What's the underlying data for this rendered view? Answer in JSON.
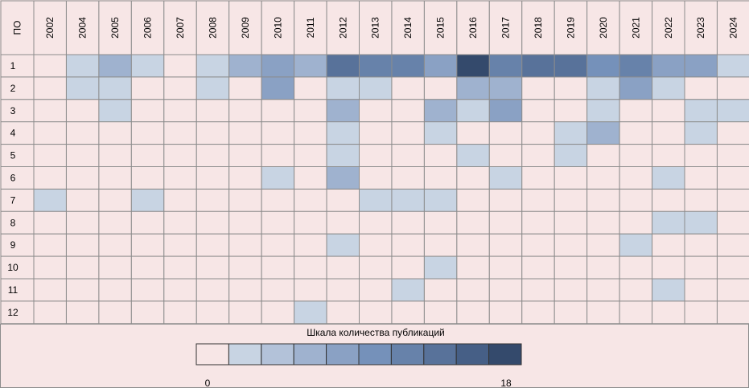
{
  "chart_data": {
    "type": "heatmap",
    "corner_label": "ПО",
    "x": [
      "2002",
      "2004",
      "2005",
      "2006",
      "2007",
      "2008",
      "2009",
      "2010",
      "2011",
      "2012",
      "2013",
      "2014",
      "2015",
      "2016",
      "2017",
      "2018",
      "2019",
      "2020",
      "2021",
      "2022",
      "2023",
      "2024"
    ],
    "y": [
      "1",
      "2",
      "3",
      "4",
      "5",
      "6",
      "7",
      "8",
      "9",
      "10",
      "11",
      "12"
    ],
    "values": [
      [
        0,
        2,
        6,
        2,
        0,
        2,
        6,
        7,
        6,
        14,
        12,
        12,
        8,
        18,
        12,
        14,
        14,
        10,
        12,
        8,
        8,
        2
      ],
      [
        0,
        2,
        2,
        0,
        0,
        2,
        0,
        8,
        0,
        2,
        2,
        0,
        0,
        6,
        6,
        0,
        0,
        2,
        8,
        2,
        0,
        0
      ],
      [
        0,
        0,
        2,
        0,
        0,
        0,
        0,
        0,
        0,
        6,
        0,
        0,
        6,
        2,
        8,
        0,
        0,
        2,
        0,
        0,
        2,
        2
      ],
      [
        0,
        0,
        0,
        0,
        0,
        0,
        0,
        0,
        0,
        2,
        0,
        0,
        2,
        0,
        0,
        0,
        2,
        6,
        0,
        0,
        2,
        0
      ],
      [
        0,
        0,
        0,
        0,
        0,
        0,
        0,
        0,
        0,
        2,
        0,
        0,
        0,
        2,
        0,
        0,
        2,
        0,
        0,
        0,
        0,
        0
      ],
      [
        0,
        0,
        0,
        0,
        0,
        0,
        0,
        2,
        0,
        6,
        0,
        0,
        0,
        0,
        2,
        0,
        0,
        0,
        0,
        2,
        0,
        0
      ],
      [
        2,
        0,
        0,
        2,
        0,
        0,
        0,
        0,
        0,
        0,
        2,
        2,
        2,
        0,
        0,
        0,
        0,
        0,
        0,
        0,
        0,
        0
      ],
      [
        0,
        0,
        0,
        0,
        0,
        0,
        0,
        0,
        0,
        0,
        0,
        0,
        0,
        0,
        0,
        0,
        0,
        0,
        0,
        2,
        2,
        0
      ],
      [
        0,
        0,
        0,
        0,
        0,
        0,
        0,
        0,
        0,
        2,
        0,
        0,
        0,
        0,
        0,
        0,
        0,
        0,
        2,
        0,
        0,
        0
      ],
      [
        0,
        0,
        0,
        0,
        0,
        0,
        0,
        0,
        0,
        0,
        0,
        0,
        2,
        0,
        0,
        0,
        0,
        0,
        0,
        0,
        0,
        0
      ],
      [
        0,
        0,
        0,
        0,
        0,
        0,
        0,
        0,
        0,
        0,
        0,
        2,
        0,
        0,
        0,
        0,
        0,
        0,
        0,
        2,
        0,
        0
      ],
      [
        0,
        0,
        0,
        0,
        0,
        0,
        0,
        0,
        2,
        0,
        0,
        0,
        0,
        0,
        0,
        0,
        0,
        0,
        0,
        0,
        0,
        0
      ]
    ],
    "scale": {
      "title": "Шкала количества публикаций",
      "min_label": "0",
      "max_label": "18",
      "min": 0,
      "max": 18,
      "colors": [
        "#f7e6e6",
        "#c8d4e3",
        "#b3c2d9",
        "#9fb2cf",
        "#8aa1c4",
        "#7591ba",
        "#6782aa",
        "#58729a",
        "#465f86",
        "#344a6c"
      ]
    },
    "grid_line_color": "#8c8c8c",
    "background_color": "#f7e6e6"
  }
}
